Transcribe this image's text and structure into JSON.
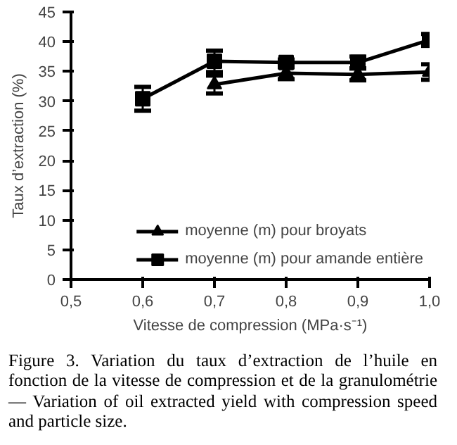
{
  "chart_data": {
    "type": "line",
    "xlabel": "Vitesse de compression (MPa·s⁻¹)",
    "ylabel": "Taux d’extraction (%)",
    "xlim": [
      0.5,
      1.0
    ],
    "xticks": [
      {
        "value": 0.5,
        "label": "0,5"
      },
      {
        "value": 0.6,
        "label": "0,6"
      },
      {
        "value": 0.7,
        "label": "0,7"
      },
      {
        "value": 0.8,
        "label": "0,8"
      },
      {
        "value": 0.9,
        "label": "0,9"
      },
      {
        "value": 1.0,
        "label": "1,0"
      }
    ],
    "ylim": [
      0,
      45
    ],
    "yticks": [
      0,
      5,
      10,
      15,
      20,
      25,
      30,
      35,
      40,
      45
    ],
    "grid": false,
    "legend": "bottom right",
    "series": [
      {
        "name": "moyenne (m) pour broyats",
        "color": "#000000",
        "marker": "triangle",
        "x": [
          0.7,
          0.8,
          0.9,
          1.0
        ],
        "values": [
          32.8,
          34.7,
          34.5,
          34.9
        ],
        "errors": [
          1.5,
          1,
          1,
          1.3
        ]
      },
      {
        "name": "moyenne (m) pour amande entière",
        "color": "#000000",
        "marker": "square",
        "x": [
          0.6,
          0.7,
          0.8,
          0.9,
          1.0
        ],
        "values": [
          30.4,
          36.7,
          36.5,
          36.5,
          40.3
        ],
        "errors": [
          2,
          1.8,
          0.5,
          1,
          1
        ]
      }
    ],
    "annotations": [
      "Figure 3. Variation du taux d’extraction de l’huile en fonction de la vitesse de compression et de la granulométrie — Variation of oil extracted yield with compression speed and particle size."
    ]
  }
}
